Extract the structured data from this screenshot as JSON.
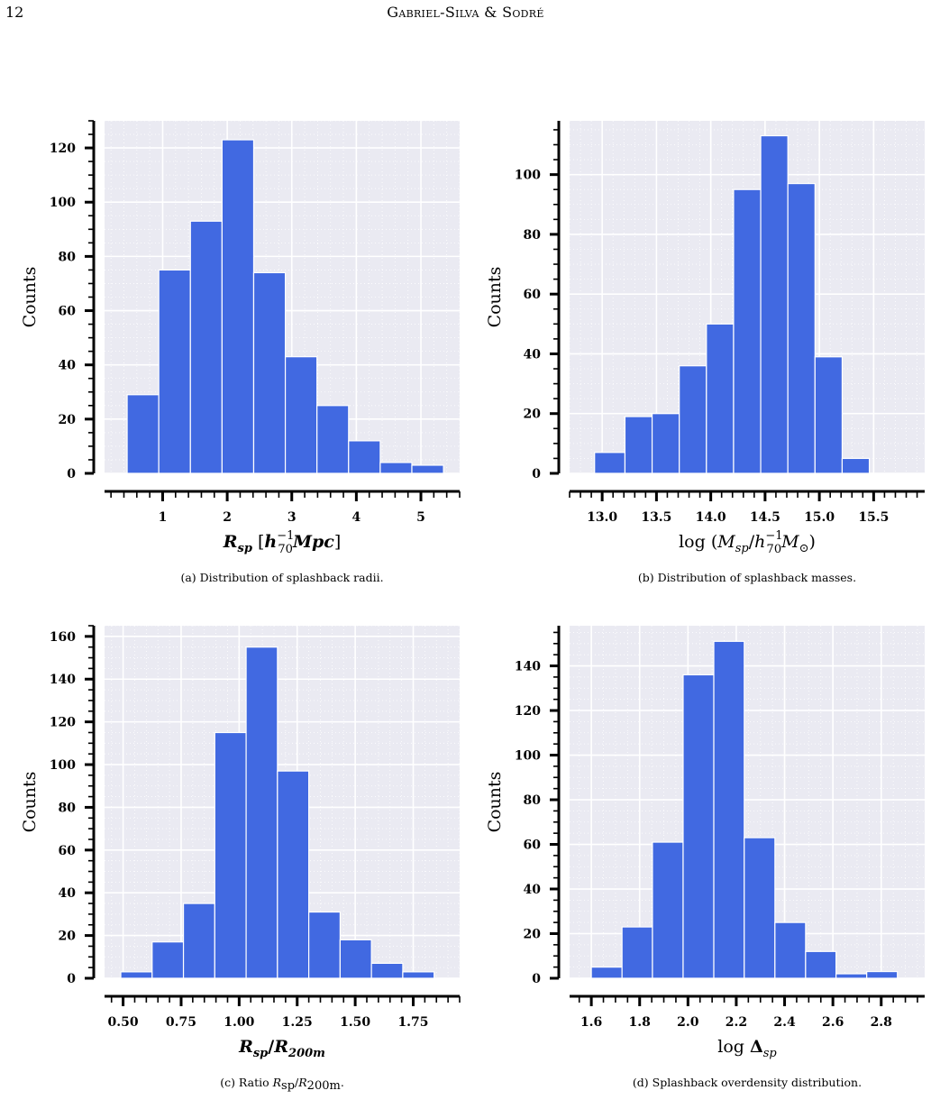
{
  "page": {
    "number": "12",
    "running_head": "Gabriel-Silva & Sodré"
  },
  "chart_data": [
    {
      "id": "a",
      "type": "bar",
      "caption": "(a) Distribution of splashback radii.",
      "xlabel": "R_sp [h_70^-1 Mpc]",
      "ylabel": "Counts",
      "xlim": [
        0.1,
        5.6
      ],
      "ylim": [
        0,
        130
      ],
      "xticks": [
        1,
        2,
        3,
        4,
        5
      ],
      "xtick_labels": [
        "1",
        "2",
        "3",
        "4",
        "5"
      ],
      "x_minor_step": 0.2,
      "yticks": [
        0,
        20,
        40,
        60,
        80,
        100,
        120
      ],
      "y_minor_step": 5,
      "bin_edges": [
        0.45,
        0.94,
        1.43,
        1.92,
        2.41,
        2.9,
        3.39,
        3.88,
        4.37,
        4.86,
        5.35
      ],
      "values": [
        29,
        75,
        93,
        123,
        74,
        43,
        25,
        12,
        4,
        3
      ],
      "grid": true,
      "bar_color": "#4169E1",
      "plot_bg": "#EAEAF2"
    },
    {
      "id": "b",
      "type": "bar",
      "caption": "(b) Distribution of splashback masses.",
      "xlabel": "log (M_sp/h_70^-1 M_⊙)",
      "ylabel": "Counts",
      "xlim": [
        12.7,
        15.97
      ],
      "ylim": [
        0,
        118
      ],
      "xticks": [
        13.0,
        13.5,
        14.0,
        14.5,
        15.0,
        15.5
      ],
      "xtick_labels": [
        "13.0",
        "13.5",
        "14.0",
        "14.5",
        "15.0",
        "15.5"
      ],
      "x_minor_step": 0.1,
      "yticks": [
        0,
        20,
        40,
        60,
        80,
        100
      ],
      "y_minor_step": 5,
      "bin_edges": [
        12.93,
        13.21,
        13.46,
        13.71,
        13.96,
        14.21,
        14.46,
        14.71,
        14.96,
        15.21,
        15.46
      ],
      "values": [
        7,
        19,
        20,
        36,
        50,
        95,
        113,
        97,
        39,
        5
      ],
      "grid": true,
      "bar_color": "#4169E1",
      "plot_bg": "#EAEAF2"
    },
    {
      "id": "c",
      "type": "bar",
      "caption": "(c) Ratio R_sp/R_200m.",
      "xlabel": "R_sp/R_200m",
      "ylabel": "Counts",
      "xlim": [
        0.42,
        1.95
      ],
      "ylim": [
        0,
        165
      ],
      "xticks": [
        0.5,
        0.75,
        1.0,
        1.25,
        1.5,
        1.75
      ],
      "xtick_labels": [
        "0.50",
        "0.75",
        "1.00",
        "1.25",
        "1.50",
        "1.75"
      ],
      "x_minor_step": 0.05,
      "yticks": [
        0,
        20,
        40,
        60,
        80,
        100,
        120,
        140,
        160
      ],
      "y_minor_step": 5,
      "bin_edges": [
        0.49,
        0.625,
        0.76,
        0.895,
        1.03,
        1.165,
        1.3,
        1.435,
        1.57,
        1.705,
        1.84
      ],
      "values": [
        3,
        17,
        35,
        115,
        155,
        97,
        31,
        18,
        7,
        3
      ],
      "grid": true,
      "bar_color": "#4169E1",
      "plot_bg": "#EAEAF2"
    },
    {
      "id": "d",
      "type": "bar",
      "caption": "(d) Splashback overdensity distribution.",
      "xlabel": "log Δ_sp",
      "ylabel": "Counts",
      "xlim": [
        1.51,
        2.98
      ],
      "ylim": [
        0,
        158
      ],
      "xticks": [
        1.6,
        1.8,
        2.0,
        2.2,
        2.4,
        2.6,
        2.8
      ],
      "xtick_labels": [
        "1.6",
        "1.8",
        "2.0",
        "2.2",
        "2.4",
        "2.6",
        "2.8"
      ],
      "x_minor_step": 0.05,
      "yticks": [
        0,
        20,
        40,
        60,
        80,
        100,
        120,
        140
      ],
      "y_minor_step": 5,
      "bin_edges": [
        1.6,
        1.727,
        1.853,
        1.98,
        2.107,
        2.233,
        2.36,
        2.487,
        2.613,
        2.74,
        2.867
      ],
      "values": [
        5,
        23,
        61,
        136,
        151,
        63,
        25,
        12,
        2,
        3
      ],
      "grid": true,
      "bar_color": "#4169E1",
      "plot_bg": "#EAEAF2"
    }
  ]
}
